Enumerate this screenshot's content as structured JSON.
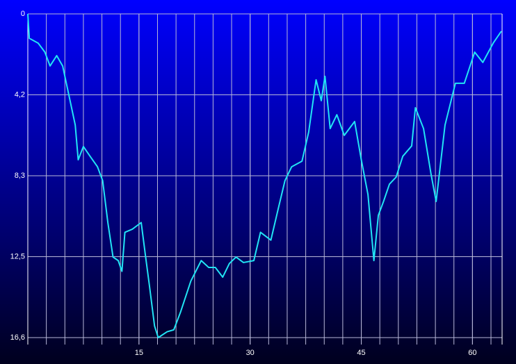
{
  "chart_data": {
    "type": "line",
    "x": [
      0,
      0.2,
      1.4,
      2.3,
      3.0,
      3.9,
      4.7,
      5.6,
      6.4,
      6.8,
      7.5,
      8.4,
      9.4,
      10.1,
      10.8,
      11.5,
      12.2,
      12.7,
      13.1,
      14.1,
      15.3,
      15.9,
      16.4,
      17.1,
      17.6,
      18.8,
      19.7,
      20.6,
      22.0,
      23.4,
      24.4,
      25.3,
      26.3,
      27.2,
      28.1,
      29.1,
      30.5,
      31.4,
      32.8,
      33.8,
      34.7,
      35.6,
      37.0,
      37.9,
      38.9,
      39.6,
      40.1,
      40.8,
      41.7,
      42.7,
      44.1,
      45.0,
      45.9,
      46.7,
      47.3,
      48.0,
      48.8,
      49.7,
      50.6,
      51.8,
      52.3,
      53.4,
      54.4,
      55.1,
      56.3,
      57.7,
      58.9,
      60.3,
      61.4,
      62.8,
      63.9
    ],
    "series": [
      {
        "color": "#22e4f4",
        "values": [
          0,
          1.25,
          1.5,
          1.96,
          2.67,
          2.14,
          2.67,
          4.27,
          5.7,
          7.48,
          6.8,
          7.3,
          7.84,
          8.55,
          10.7,
          12.47,
          12.65,
          13.2,
          11.2,
          11.04,
          10.7,
          12.47,
          13.9,
          16.0,
          16.6,
          16.3,
          16.2,
          15.3,
          13.7,
          12.65,
          13.0,
          13.0,
          13.5,
          12.8,
          12.47,
          12.75,
          12.65,
          11.2,
          11.6,
          9.98,
          8.55,
          7.84,
          7.55,
          6.06,
          3.38,
          4.45,
          3.2,
          5.88,
          5.17,
          6.23,
          5.52,
          7.48,
          9.26,
          12.65,
          10.33,
          9.62,
          8.73,
          8.37,
          7.3,
          6.77,
          4.81,
          5.88,
          8.19,
          9.62,
          5.7,
          3.56,
          3.56,
          1.96,
          2.49,
          1.5,
          0.89
        ]
      }
    ],
    "xlim": [
      0,
      64
    ],
    "xticks": [
      15,
      30,
      45,
      60
    ],
    "xgrid_step": 2.5,
    "ylim": [
      0,
      16.6
    ],
    "y_inverted": true,
    "yticks": [
      0,
      {
        "value": 4.15,
        "label": "4,2"
      },
      {
        "value": 8.3,
        "label": "8,3"
      },
      {
        "value": 12.45,
        "label": "12,5"
      },
      {
        "value": 16.6,
        "label": "16,6"
      }
    ],
    "grid": true
  }
}
